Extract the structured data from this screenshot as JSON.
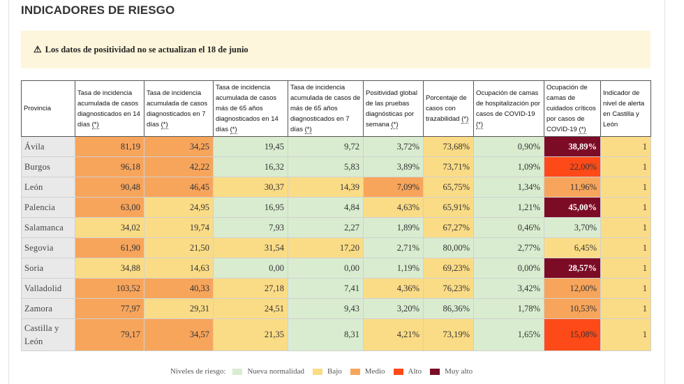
{
  "page": {
    "title": "INDICADORES DE RIESGO"
  },
  "alert": {
    "icon": "warning-icon",
    "text": "Los datos de positividad no se actualizan el 18 de junio"
  },
  "colors": {
    "nueva_normalidad": "#d9ecd0",
    "bajo": "#fbdc86",
    "medio": "#f8a55c",
    "alto": "#fe4a18",
    "muy_alto": "#7c0c26"
  },
  "table": {
    "headers": [
      "Provincia",
      "Tasa de incidencia acumulada de casos diagnosticados en 14 días",
      "Tasa de incidencia acumulada de casos diagnosticados en 7 días",
      "Tasa de incidencia acumulada de casos más de 65 años diagnosticados en 14 días",
      "Tasa de incidencia acumulada de casos de más de 65 años diagnosticados en 7 días",
      "Positividad global de las pruebas diagnósticas por semana",
      "Porcentaje de casos con trazabilidad",
      "Ocupación de camas de hospitalización por casos de COVID-19",
      "Ocupación de camas de cuidados críticos por casos de COVID-19",
      "Indicador de nivel de alerta en Castilla y León"
    ],
    "footnote_mark": "(*)",
    "rows": [
      {
        "provincia": "Ávila",
        "values": [
          "81,19",
          "34,25",
          "19,45",
          "9,72",
          "3,72%",
          "73,68%",
          "0,90%",
          "38,89%",
          "1"
        ],
        "levels": [
          "medio",
          "medio",
          "nn",
          "nn",
          "nn",
          "bajo",
          "nn",
          "muyalto",
          "bajo"
        ]
      },
      {
        "provincia": "Burgos",
        "values": [
          "96,18",
          "42,22",
          "16,32",
          "5,83",
          "3,89%",
          "73,71%",
          "1,09%",
          "22,00%",
          "1"
        ],
        "levels": [
          "medio",
          "medio",
          "nn",
          "nn",
          "nn",
          "bajo",
          "nn",
          "alto",
          "bajo"
        ]
      },
      {
        "provincia": "León",
        "values": [
          "90,48",
          "46,45",
          "30,37",
          "14,39",
          "7,09%",
          "65,75%",
          "1,34%",
          "11,96%",
          "1"
        ],
        "levels": [
          "medio",
          "medio",
          "bajo",
          "bajo",
          "medio",
          "bajo",
          "nn",
          "medio",
          "bajo"
        ]
      },
      {
        "provincia": "Palencia",
        "values": [
          "63,00",
          "24,95",
          "16,95",
          "4,84",
          "4,63%",
          "65,91%",
          "1,21%",
          "45,00%",
          "1"
        ],
        "levels": [
          "medio",
          "bajo",
          "nn",
          "nn",
          "bajo",
          "bajo",
          "nn",
          "muyalto",
          "bajo"
        ]
      },
      {
        "provincia": "Salamanca",
        "values": [
          "34,02",
          "19,74",
          "7,93",
          "2,27",
          "1,89%",
          "67,27%",
          "0,46%",
          "3,70%",
          "1"
        ],
        "levels": [
          "bajo",
          "bajo",
          "nn",
          "nn",
          "nn",
          "bajo",
          "nn",
          "nn",
          "bajo"
        ]
      },
      {
        "provincia": "Segovia",
        "values": [
          "61,90",
          "21,50",
          "31,54",
          "17,20",
          "2,71%",
          "80,00%",
          "2,77%",
          "6,45%",
          "1"
        ],
        "levels": [
          "medio",
          "bajo",
          "bajo",
          "bajo",
          "nn",
          "nn",
          "nn",
          "bajo",
          "bajo"
        ]
      },
      {
        "provincia": "Soria",
        "values": [
          "34,88",
          "14,63",
          "0,00",
          "0,00",
          "1,19%",
          "69,23%",
          "0,00%",
          "28,57%",
          "1"
        ],
        "levels": [
          "bajo",
          "bajo",
          "nn",
          "nn",
          "nn",
          "bajo",
          "nn",
          "muyalto",
          "bajo"
        ]
      },
      {
        "provincia": "Valladolid",
        "values": [
          "103,52",
          "40,33",
          "27,18",
          "7,41",
          "4,36%",
          "76,23%",
          "3,42%",
          "12,00%",
          "1"
        ],
        "levels": [
          "medio",
          "medio",
          "bajo",
          "nn",
          "bajo",
          "bajo",
          "nn",
          "medio",
          "bajo"
        ]
      },
      {
        "provincia": "Zamora",
        "values": [
          "77,97",
          "29,31",
          "24,51",
          "9,43",
          "3,20%",
          "86,36%",
          "1,78%",
          "10,53%",
          "1"
        ],
        "levels": [
          "medio",
          "bajo",
          "bajo",
          "nn",
          "nn",
          "nn",
          "nn",
          "medio",
          "bajo"
        ]
      },
      {
        "provincia": "Castilla y León",
        "values": [
          "79,17",
          "34,57",
          "21,35",
          "8,31",
          "4,21%",
          "73,19%",
          "1,65%",
          "15,08%",
          "1"
        ],
        "levels": [
          "medio",
          "medio",
          "bajo",
          "nn",
          "bajo",
          "bajo",
          "nn",
          "alto",
          "bajo"
        ]
      }
    ]
  },
  "legend": {
    "title": "Niveles de riesgo:",
    "items": [
      {
        "label": "Nueva normalidad",
        "color": "#d9ecd0"
      },
      {
        "label": "Bajo",
        "color": "#fbdc86"
      },
      {
        "label": "Medio",
        "color": "#f8a55c"
      },
      {
        "label": "Alto",
        "color": "#fe4a18"
      },
      {
        "label": "Muy alto",
        "color": "#7c0c26"
      }
    ]
  }
}
